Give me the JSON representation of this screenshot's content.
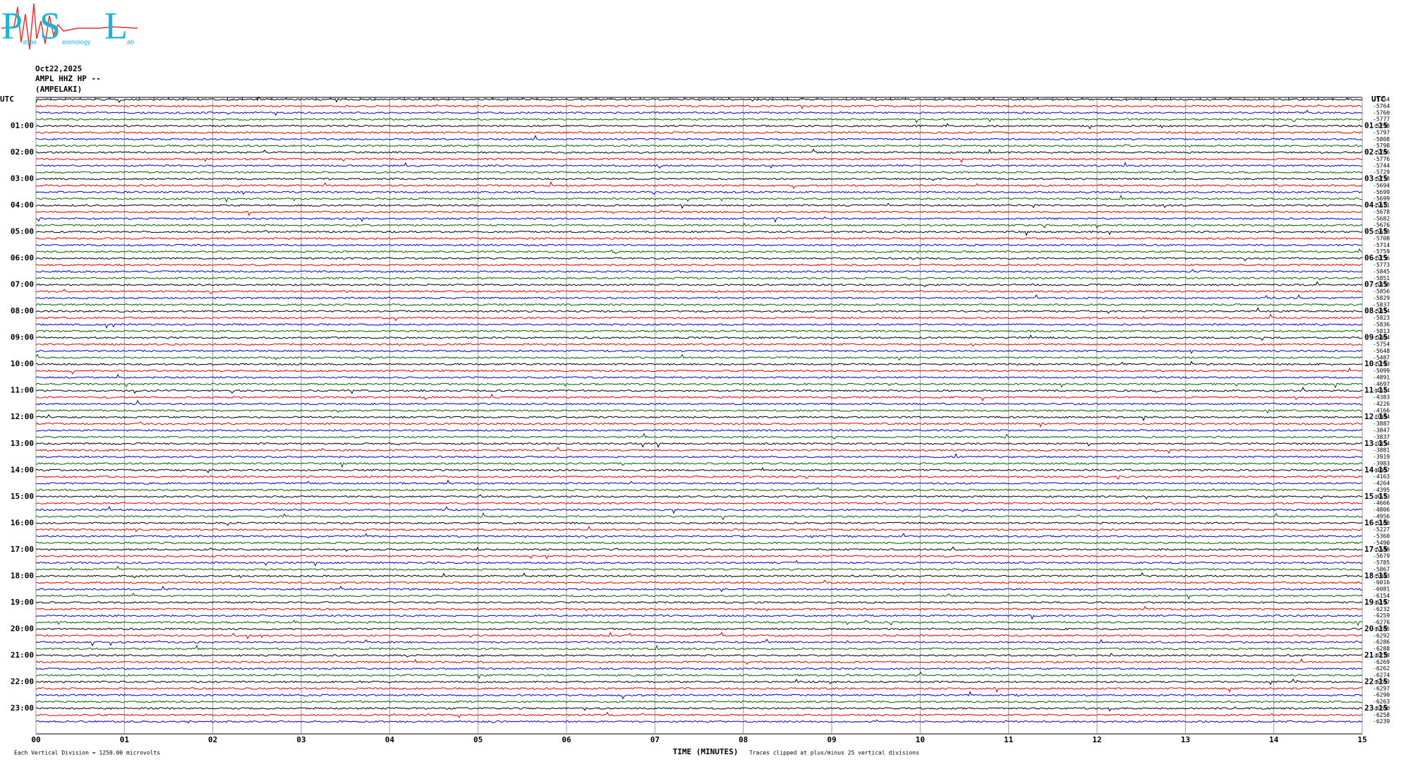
{
  "header": {
    "logo": {
      "letters": [
        "P",
        "S",
        "L"
      ],
      "words": [
        "atras",
        "eismology",
        "ab"
      ]
    },
    "date": "Oct22,2025",
    "station": "AMPL HHZ HP --",
    "site": "(AMPELAKI)"
  },
  "axis": {
    "left_title": "UTC",
    "right_title": "UTC",
    "left_labels": [
      "01:00",
      "02:00",
      "03:00",
      "04:00",
      "05:00",
      "06:00",
      "07:00",
      "08:00",
      "09:00",
      "10:00",
      "11:00",
      "12:00",
      "13:00",
      "14:00",
      "15:00",
      "16:00",
      "17:00",
      "18:00",
      "19:00",
      "20:00",
      "21:00",
      "22:00",
      "23:00"
    ],
    "right_labels": [
      "01:15",
      "02:15",
      "03:15",
      "04:15",
      "05:15",
      "06:15",
      "07:15",
      "08:15",
      "09:15",
      "10:15",
      "11:15",
      "12:15",
      "13:15",
      "14:15",
      "15:15",
      "16:15",
      "17:15",
      "18:15",
      "19:15",
      "20:15",
      "21:15",
      "22:15",
      "23:15"
    ],
    "minutes": [
      "00",
      "01",
      "02",
      "03",
      "04",
      "05",
      "06",
      "07",
      "08",
      "09",
      "10",
      "11",
      "12",
      "13",
      "14",
      "15"
    ],
    "x_title": "TIME (MINUTES)"
  },
  "trace_colors": [
    "#000000",
    "#e00000",
    "#0000d0",
    "#006000"
  ],
  "offsets": [
    -5754,
    -5764,
    -5760,
    -5777,
    -5798,
    -5797,
    -5808,
    -5798,
    -5786,
    -5776,
    -5744,
    -5729,
    -5718,
    -5694,
    -5699,
    -5699,
    -5671,
    -5678,
    -5682,
    -5676,
    -5678,
    -5708,
    -5714,
    -5759,
    -5756,
    -5773,
    -5845,
    -5851,
    -5858,
    -5856,
    -5829,
    -5837,
    -5834,
    -5823,
    -5836,
    -5813,
    -5804,
    -5754,
    -5648,
    -5487,
    -5293,
    -5099,
    -4891,
    -4697,
    -4524,
    -4383,
    -4226,
    -4166,
    -3984,
    -3887,
    -3847,
    -3837,
    -3854,
    -3881,
    -3919,
    -3983,
    -4067,
    -4163,
    -4264,
    -4395,
    -4523,
    -4666,
    -4806,
    -4956,
    -5108,
    -5227,
    -5360,
    -5490,
    -5588,
    -5679,
    -5785,
    -5867,
    -5943,
    -6016,
    -6081,
    -6154,
    -6197,
    -6232,
    -6259,
    -6276,
    -6285,
    -6292,
    -6286,
    -6288,
    -6278,
    -6269,
    -6262,
    -6274,
    -6283,
    -6297,
    -6290,
    -6263,
    -6260,
    -6258,
    -6239
  ],
  "footer": {
    "scale_note": "Each Vertical Division = 1250.00 microvolts",
    "clip_note": "Traces clipped at plus/minus 25 vertical divisions"
  }
}
